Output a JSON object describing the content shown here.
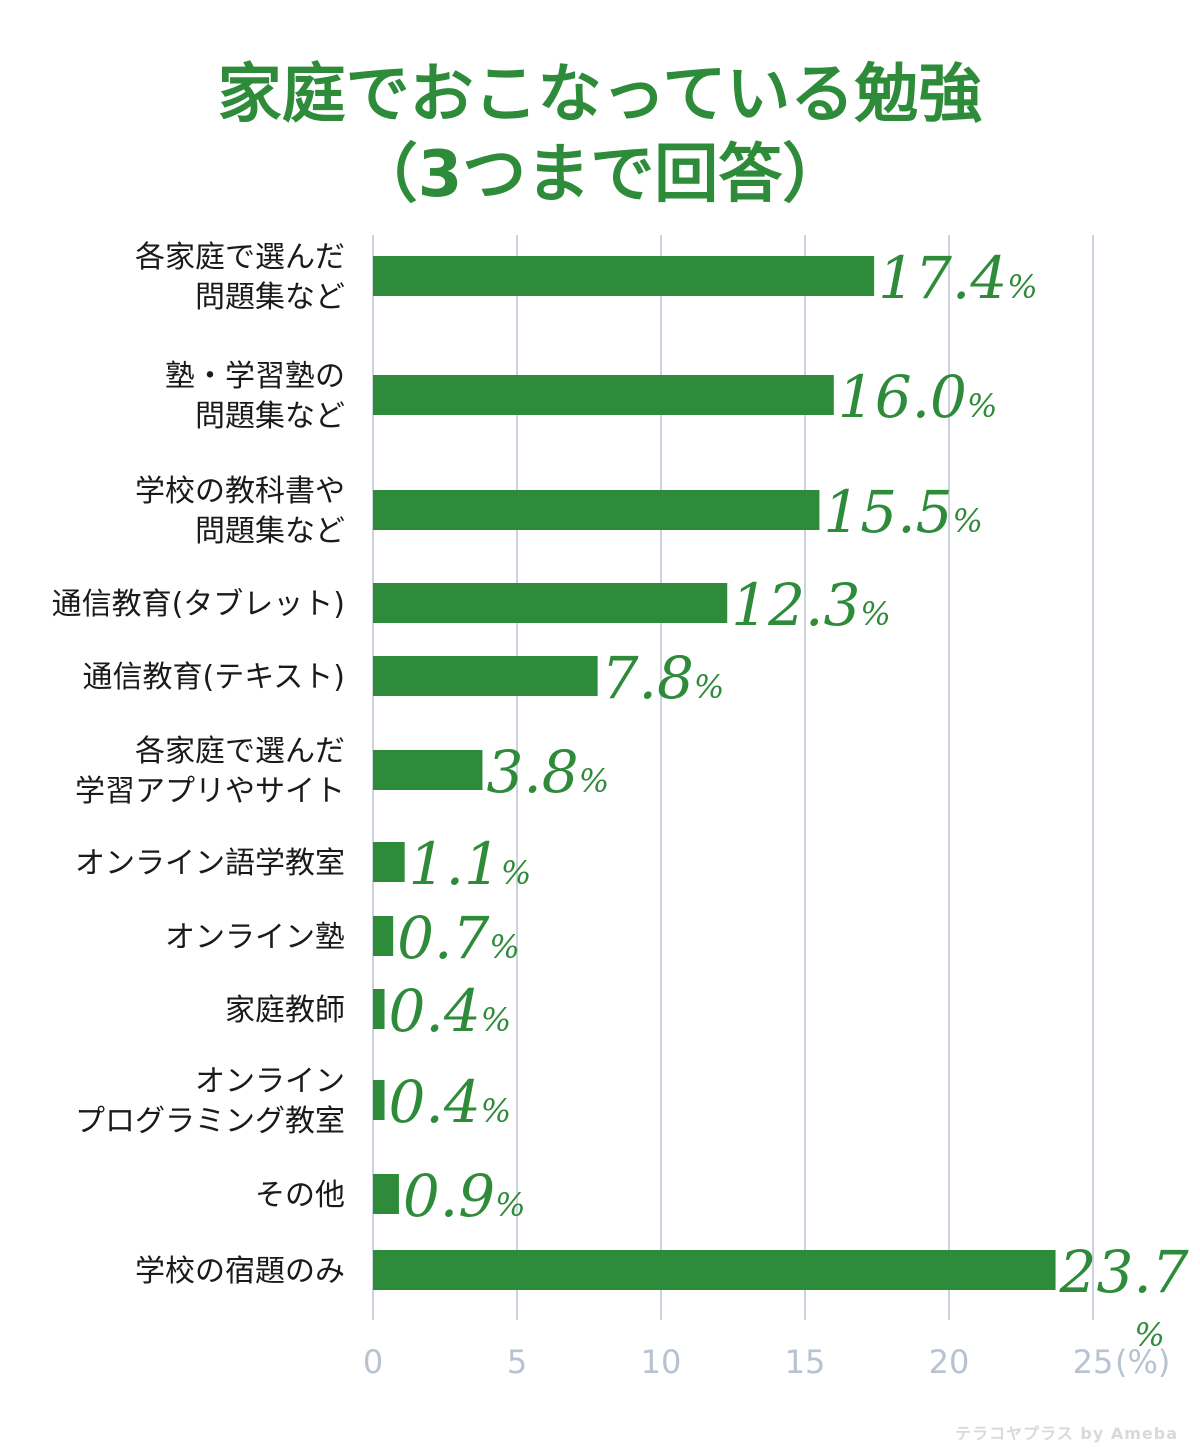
{
  "title_line1": "家庭でおこなっている勉強",
  "title_line2": "（3つまで回答）",
  "unit_label": "(%)",
  "watermark": "テラコヤプラス by Ameba",
  "colors": {
    "bar": "#2e8b3a",
    "grid": "#ccd3de",
    "tick": "#b7c3d3",
    "value": "#2e8b3a"
  },
  "chart_data": {
    "type": "bar",
    "orientation": "horizontal",
    "title": "家庭でおこなっている勉強（3つまで回答）",
    "xlabel": "(%)",
    "ylabel": "",
    "xlim": [
      0,
      25
    ],
    "xticks": [
      0,
      5,
      10,
      15,
      20,
      25
    ],
    "grid": "vertical",
    "value_suffix": "%",
    "categories": [
      "各家庭で選んだ\n問題集など",
      "塾・学習塾の\n問題集など",
      "学校の教科書や\n問題集など",
      "通信教育(タブレット)",
      "通信教育(テキスト)",
      "各家庭で選んだ\n学習アプリやサイト",
      "オンライン語学教室",
      "オンライン塾",
      "家庭教師",
      "オンライン\nプログラミング教室",
      "その他",
      "学校の宿題のみ"
    ],
    "values": [
      17.4,
      16.0,
      15.5,
      12.3,
      7.8,
      3.8,
      1.1,
      0.7,
      0.4,
      0.4,
      0.9,
      23.7
    ],
    "value_labels": [
      "17.4",
      "16.0",
      "15.5",
      "12.3",
      "7.8",
      "3.8",
      "1.1",
      "0.7",
      "0.4",
      "0.4",
      "0.9",
      "23.7"
    ]
  }
}
